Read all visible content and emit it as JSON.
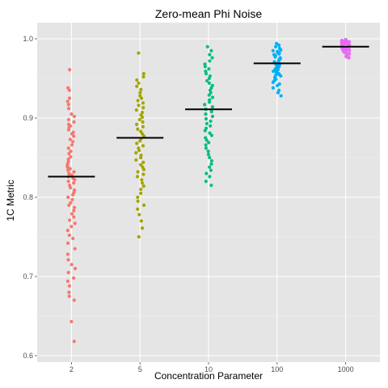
{
  "chart_data": {
    "type": "scatter",
    "title": "Zero-mean Phi Noise",
    "xlabel": "Concentration Parameter",
    "ylabel": "1C Metric",
    "categories": [
      "2",
      "5",
      "10",
      "100",
      "1000"
    ],
    "ylim": [
      0.6,
      1.0
    ],
    "yticks": [
      "0.6",
      "0.7",
      "0.8",
      "0.9",
      "1.0"
    ],
    "grid": true,
    "legend": "none",
    "colors": [
      "#F8766D",
      "#A3A500",
      "#00BF7D",
      "#00B0F6",
      "#E76BF3"
    ],
    "mean_line_color": "#000000",
    "series": [
      {
        "category": "2",
        "mean": 0.826,
        "values": [
          0.961,
          0.938,
          0.935,
          0.925,
          0.921,
          0.917,
          0.912,
          0.905,
          0.902,
          0.898,
          0.895,
          0.892,
          0.89,
          0.888,
          0.885,
          0.882,
          0.88,
          0.877,
          0.873,
          0.87,
          0.866,
          0.862,
          0.858,
          0.855,
          0.851,
          0.848,
          0.845,
          0.842,
          0.84,
          0.838,
          0.836,
          0.834,
          0.832,
          0.83,
          0.828,
          0.826,
          0.824,
          0.822,
          0.82,
          0.818,
          0.815,
          0.812,
          0.809,
          0.806,
          0.803,
          0.8,
          0.797,
          0.793,
          0.79,
          0.787,
          0.783,
          0.779,
          0.775,
          0.771,
          0.767,
          0.763,
          0.758,
          0.752,
          0.748,
          0.742,
          0.735,
          0.728,
          0.721,
          0.715,
          0.71,
          0.705,
          0.698,
          0.694,
          0.688,
          0.68,
          0.675,
          0.67,
          0.643,
          0.618
        ]
      },
      {
        "category": "5",
        "mean": 0.875,
        "values": [
          0.982,
          0.956,
          0.952,
          0.948,
          0.944,
          0.94,
          0.936,
          0.932,
          0.928,
          0.925,
          0.922,
          0.919,
          0.916,
          0.913,
          0.91,
          0.907,
          0.904,
          0.901,
          0.898,
          0.895,
          0.892,
          0.889,
          0.886,
          0.883,
          0.88,
          0.877,
          0.874,
          0.871,
          0.868,
          0.865,
          0.862,
          0.859,
          0.856,
          0.853,
          0.85,
          0.847,
          0.844,
          0.841,
          0.838,
          0.835,
          0.832,
          0.829,
          0.826,
          0.822,
          0.818,
          0.814,
          0.81,
          0.805,
          0.8,
          0.795,
          0.79,
          0.785,
          0.778,
          0.77,
          0.761,
          0.75
        ]
      },
      {
        "category": "10",
        "mean": 0.911,
        "values": [
          0.99,
          0.985,
          0.98,
          0.976,
          0.972,
          0.968,
          0.965,
          0.962,
          0.959,
          0.956,
          0.953,
          0.95,
          0.947,
          0.944,
          0.941,
          0.938,
          0.935,
          0.932,
          0.929,
          0.926,
          0.923,
          0.92,
          0.917,
          0.914,
          0.911,
          0.908,
          0.905,
          0.902,
          0.899,
          0.896,
          0.893,
          0.89,
          0.887,
          0.884,
          0.881,
          0.878,
          0.875,
          0.872,
          0.869,
          0.866,
          0.862,
          0.858,
          0.854,
          0.85,
          0.846,
          0.842,
          0.838,
          0.834,
          0.83,
          0.826,
          0.82,
          0.815
        ]
      },
      {
        "category": "100",
        "mean": 0.969,
        "values": [
          0.994,
          0.992,
          0.99,
          0.988,
          0.986,
          0.985,
          0.984,
          0.983,
          0.982,
          0.981,
          0.98,
          0.979,
          0.978,
          0.977,
          0.976,
          0.975,
          0.974,
          0.973,
          0.972,
          0.971,
          0.97,
          0.969,
          0.968,
          0.967,
          0.966,
          0.965,
          0.964,
          0.963,
          0.962,
          0.961,
          0.96,
          0.959,
          0.958,
          0.957,
          0.956,
          0.955,
          0.954,
          0.953,
          0.951,
          0.949,
          0.947,
          0.945,
          0.943,
          0.941,
          0.938,
          0.935,
          0.932,
          0.928
        ]
      },
      {
        "category": "1000",
        "mean": 0.99,
        "values": [
          0.999,
          0.998,
          0.998,
          0.997,
          0.997,
          0.996,
          0.996,
          0.995,
          0.995,
          0.994,
          0.994,
          0.993,
          0.993,
          0.992,
          0.992,
          0.991,
          0.991,
          0.99,
          0.99,
          0.989,
          0.989,
          0.988,
          0.988,
          0.987,
          0.987,
          0.986,
          0.986,
          0.985,
          0.985,
          0.984,
          0.984,
          0.983,
          0.982,
          0.981,
          0.98,
          0.979,
          0.978,
          0.977,
          0.976
        ]
      }
    ]
  }
}
